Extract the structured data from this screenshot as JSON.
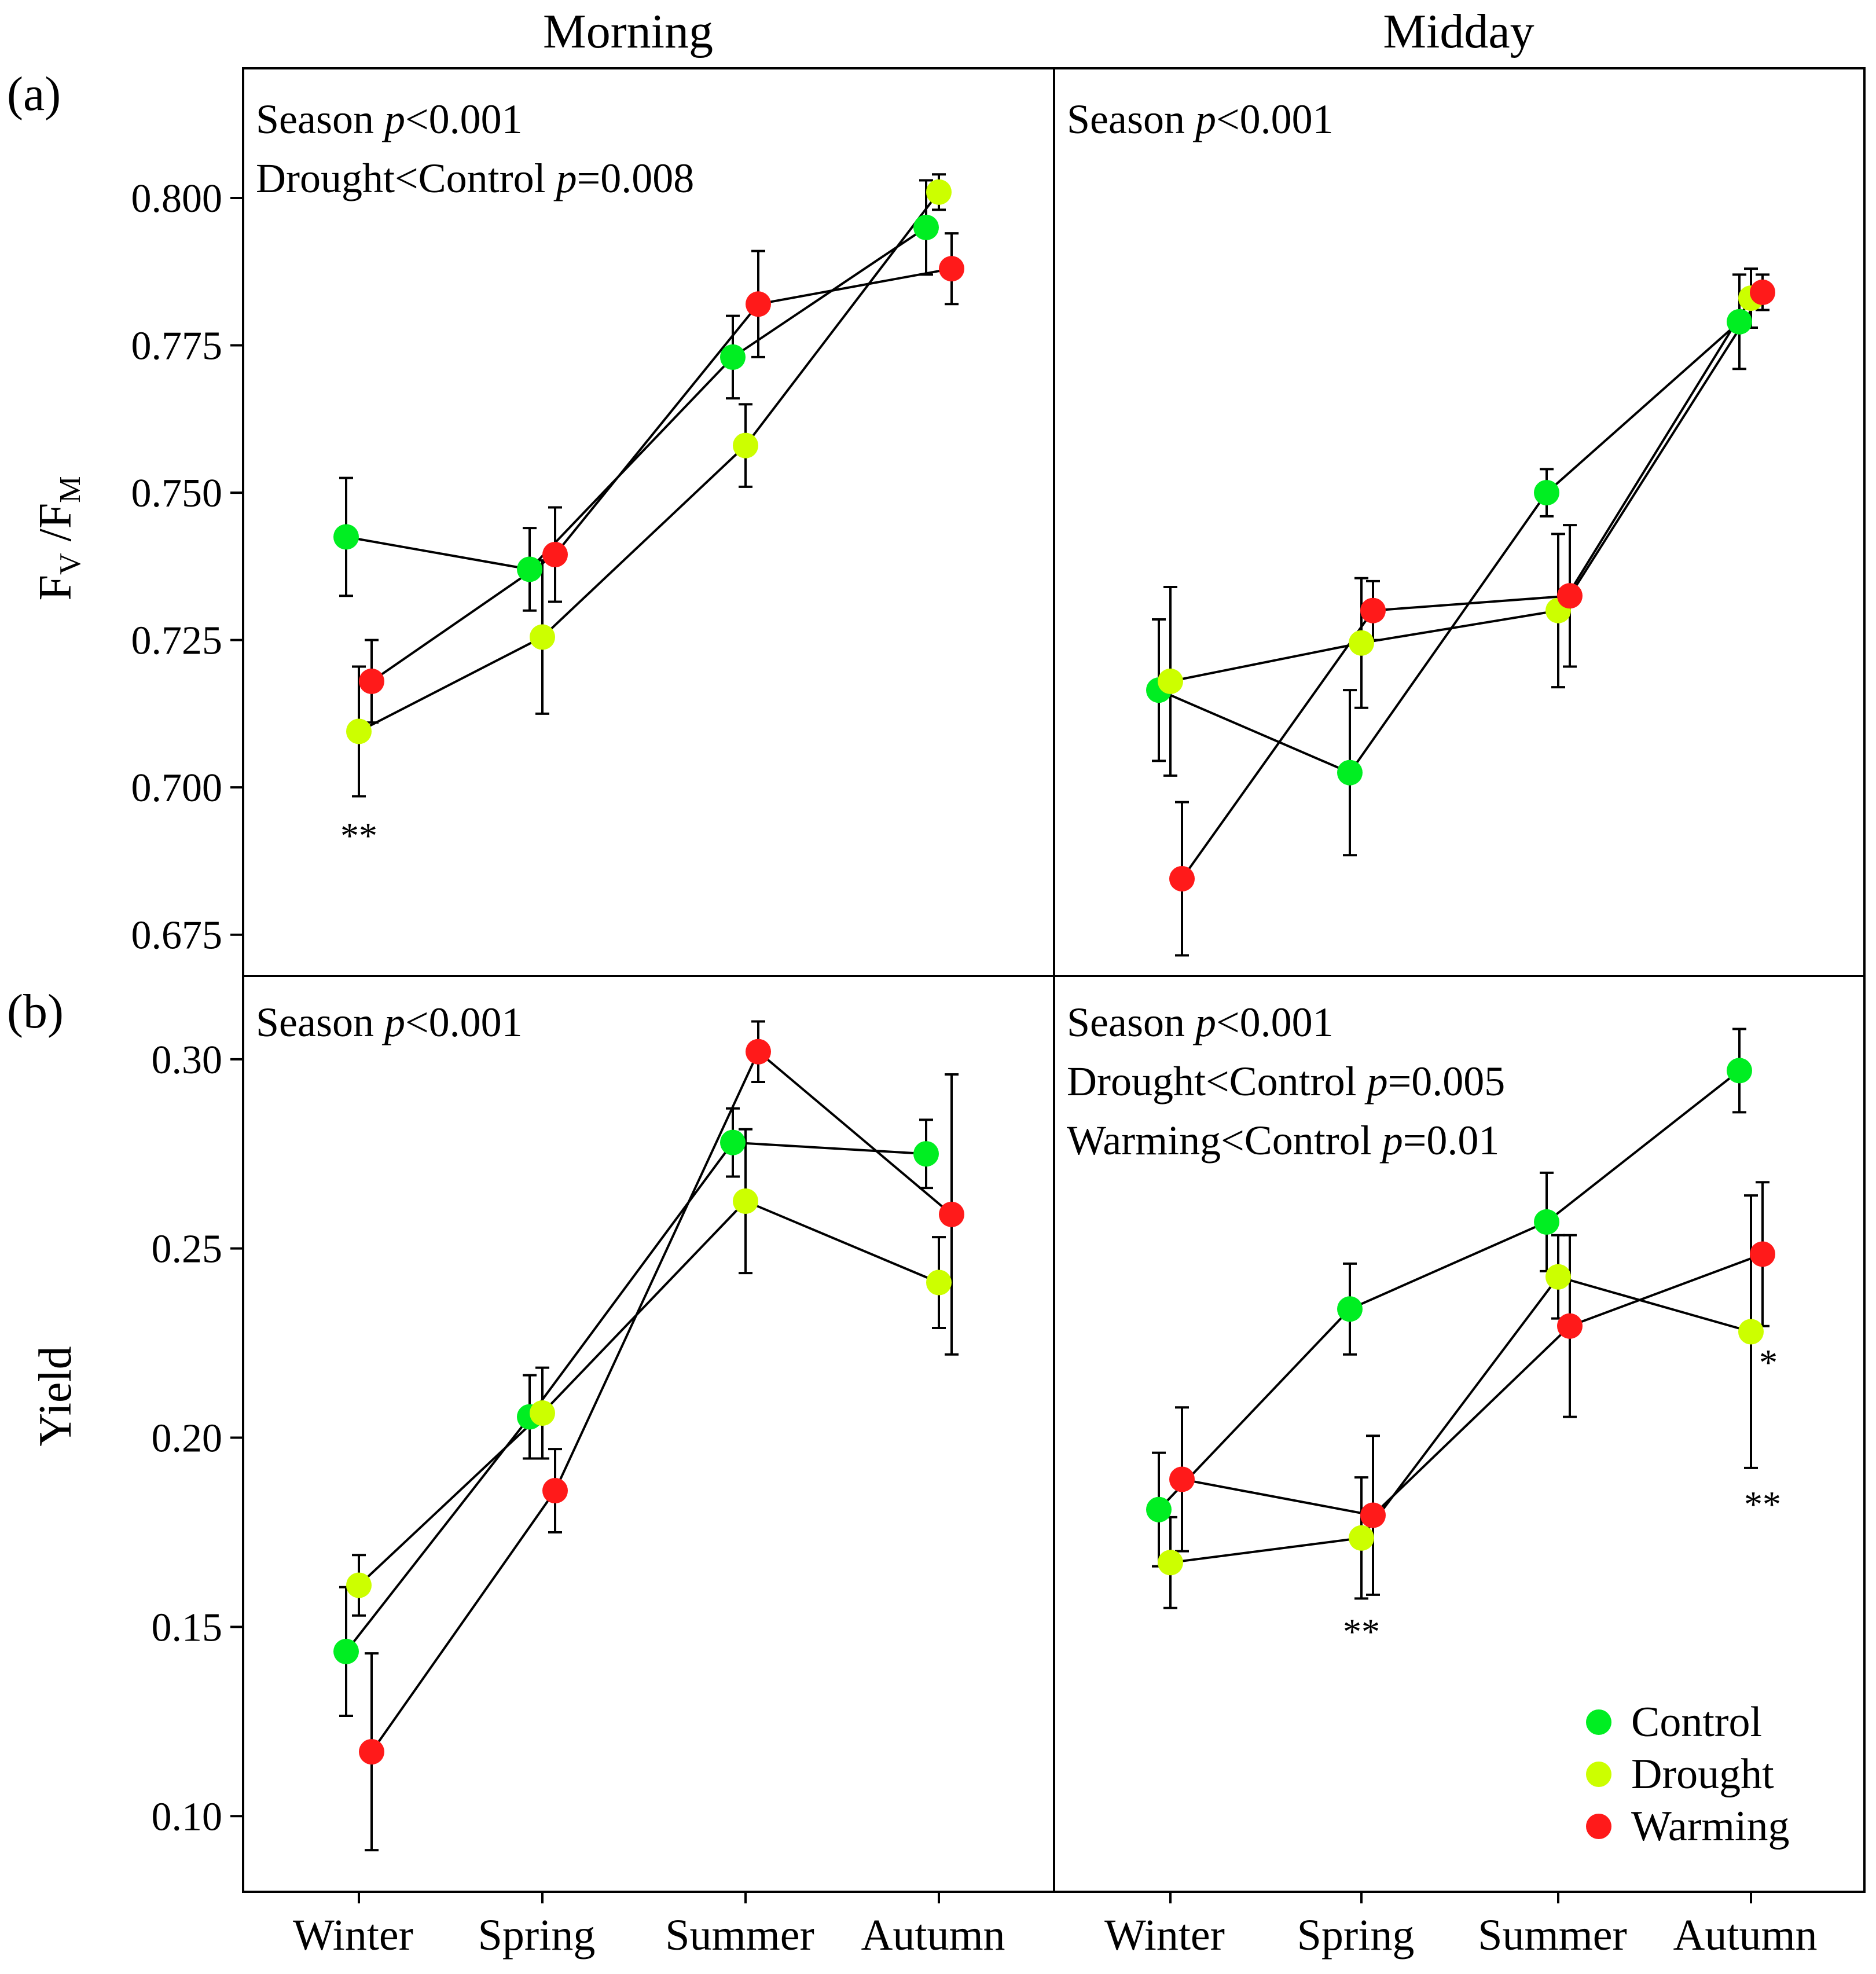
{
  "chart_data": [
    {
      "id": "a_morning",
      "type": "line",
      "panel_label": "(a)",
      "column_title": "Morning",
      "ylabel": "FV/FM",
      "ylim": [
        0.668,
        0.822
      ],
      "yticks": [
        0.675,
        0.7,
        0.725,
        0.75,
        0.775,
        0.8
      ],
      "ytick_labels": [
        "0.675",
        "0.700",
        "0.725",
        "0.750",
        "0.775",
        "0.800"
      ],
      "categories": [
        "Winter",
        "Spring",
        "Summer",
        "Autumn"
      ],
      "annotations": [
        {
          "prefix": "Season ",
          "p": "p",
          "suffix": "<0.001"
        },
        {
          "prefix": "Drought<Control ",
          "p": "p",
          "suffix": "=0.008"
        }
      ],
      "series": [
        {
          "name": "Control",
          "color": "#00ee22",
          "values": [
            0.7425,
            0.737,
            0.773,
            0.795
          ],
          "errors": [
            0.01,
            0.007,
            0.007,
            0.008
          ]
        },
        {
          "name": "Drought",
          "color": "#ccff00",
          "values": [
            0.7095,
            0.7255,
            0.758,
            0.801
          ],
          "errors": [
            0.011,
            0.013,
            0.007,
            0.003
          ]
        },
        {
          "name": "Warming",
          "color": "#ff1a1a",
          "values": [
            0.718,
            0.7395,
            0.782,
            0.788
          ],
          "errors": [
            0.007,
            0.008,
            0.009,
            0.006
          ]
        }
      ],
      "significance": [
        {
          "category": "Winter",
          "text": "**"
        }
      ]
    },
    {
      "id": "a_midday",
      "type": "line",
      "column_title": "Midday",
      "ylim": [
        0.668,
        0.822
      ],
      "categories": [
        "Winter",
        "Spring",
        "Summer",
        "Autumn"
      ],
      "annotations": [
        {
          "prefix": "Season ",
          "p": "p",
          "suffix": "<0.001"
        }
      ],
      "series": [
        {
          "name": "Control",
          "color": "#00ee22",
          "values": [
            0.7165,
            0.7025,
            0.75,
            0.779
          ],
          "errors": [
            0.012,
            0.014,
            0.004,
            0.008
          ]
        },
        {
          "name": "Drought",
          "color": "#ccff00",
          "values": [
            0.718,
            0.7245,
            0.73,
            0.783
          ],
          "errors": [
            0.016,
            0.011,
            0.013,
            0.005
          ]
        },
        {
          "name": "Warming",
          "color": "#ff1a1a",
          "values": [
            0.6845,
            0.73,
            0.7325,
            0.784
          ],
          "errors": [
            0.013,
            0.005,
            0.012,
            0.003
          ]
        }
      ],
      "significance": []
    },
    {
      "id": "b_morning",
      "type": "line",
      "panel_label": "(b)",
      "ylabel": "Yield",
      "ylim": [
        0.08,
        0.322
      ],
      "yticks": [
        0.1,
        0.15,
        0.2,
        0.25,
        0.3
      ],
      "ytick_labels": [
        "0.10",
        "0.15",
        "0.20",
        "0.25",
        "0.30"
      ],
      "categories": [
        "Winter",
        "Spring",
        "Summer",
        "Autumn"
      ],
      "annotations": [
        {
          "prefix": "Season ",
          "p": "p",
          "suffix": "<0.001"
        }
      ],
      "series": [
        {
          "name": "Control",
          "color": "#00ee22",
          "values": [
            0.1435,
            0.2055,
            0.278,
            0.275
          ],
          "errors": [
            0.017,
            0.011,
            0.009,
            0.009
          ]
        },
        {
          "name": "Drought",
          "color": "#ccff00",
          "values": [
            0.161,
            0.2065,
            0.2625,
            0.241
          ],
          "errors": [
            0.008,
            0.012,
            0.019,
            0.012
          ]
        },
        {
          "name": "Warming",
          "color": "#ff1a1a",
          "values": [
            0.117,
            0.186,
            0.302,
            0.259
          ],
          "errors": [
            0.026,
            0.011,
            0.008,
            0.037
          ]
        }
      ],
      "significance": []
    },
    {
      "id": "b_midday",
      "type": "line",
      "categories": [
        "Winter",
        "Spring",
        "Summer",
        "Autumn"
      ],
      "ylim": [
        0.08,
        0.322
      ],
      "annotations": [
        {
          "prefix": "Season ",
          "p": "p",
          "suffix": "<0.001"
        },
        {
          "prefix": "Drought<Control ",
          "p": "p",
          "suffix": "=0.005"
        },
        {
          "prefix": "Warming<Control ",
          "p": "p",
          "suffix": "=0.01"
        }
      ],
      "series": [
        {
          "name": "Control",
          "color": "#00ee22",
          "values": [
            0.181,
            0.234,
            0.257,
            0.297
          ],
          "errors": [
            0.015,
            0.012,
            0.013,
            0.011
          ]
        },
        {
          "name": "Drought",
          "color": "#ccff00",
          "values": [
            0.167,
            0.1735,
            0.2425,
            0.228
          ],
          "errors": [
            0.012,
            0.016,
            0.011,
            0.036
          ]
        },
        {
          "name": "Warming",
          "color": "#ff1a1a",
          "values": [
            0.189,
            0.1795,
            0.2295,
            0.2485
          ],
          "errors": [
            0.019,
            0.021,
            0.024,
            0.019
          ]
        }
      ],
      "significance": [
        {
          "category": "Spring",
          "text": "**"
        },
        {
          "category": "Autumn",
          "text": "*"
        },
        {
          "category": "Autumn",
          "text": "**"
        }
      ]
    }
  ],
  "legend": {
    "position": "bottom-right",
    "entries": [
      {
        "name": "Control",
        "color": "#00ee22"
      },
      {
        "name": "Drought",
        "color": "#ccff00"
      },
      {
        "name": "Warming",
        "color": "#ff1a1a"
      }
    ]
  }
}
